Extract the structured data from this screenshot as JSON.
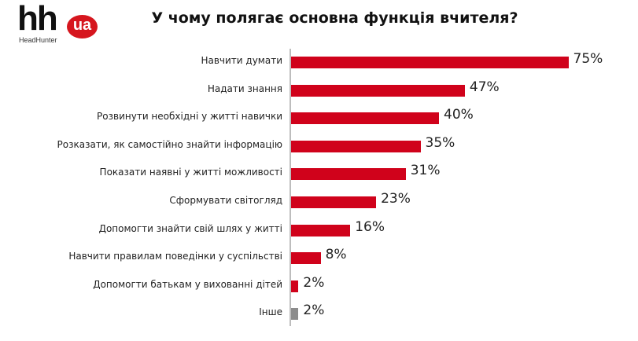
{
  "logo": {
    "mark": "hh",
    "badge": "ua",
    "subtitle": "HeadHunter"
  },
  "title": "У чому полягає основна функція вчителя?",
  "colors": {
    "primary": "#d0021b",
    "other": "#8c8c8c",
    "axis": "#bdbdbd"
  },
  "chart_data": {
    "type": "bar",
    "orientation": "horizontal",
    "title": "У чому полягає основна функція вчителя?",
    "xlabel": "",
    "ylabel": "",
    "unit": "%",
    "grid": false,
    "legend": null,
    "categories": [
      "Навчити думати",
      "Надати знання",
      "Розвинути необхідні у житті навички",
      "Розказати, як самостійно знайти інформацію",
      "Показати наявні у житті можливості",
      "Сформувати світогляд",
      "Допомогти знайти свій шлях у житті",
      "Навчити правилам поведінки у суспільстві",
      "Допомогти батькам у вихованні дітей",
      "Інше"
    ],
    "values": [
      75,
      47,
      40,
      35,
      31,
      23,
      16,
      8,
      2,
      2
    ],
    "labels": [
      "75%",
      "47%",
      "40%",
      "35%",
      "31%",
      "23%",
      "16%",
      "8%",
      "2%",
      "2%"
    ],
    "bar_colors": [
      "#d0021b",
      "#d0021b",
      "#d0021b",
      "#d0021b",
      "#d0021b",
      "#d0021b",
      "#d0021b",
      "#d0021b",
      "#d0021b",
      "#8c8c8c"
    ]
  }
}
